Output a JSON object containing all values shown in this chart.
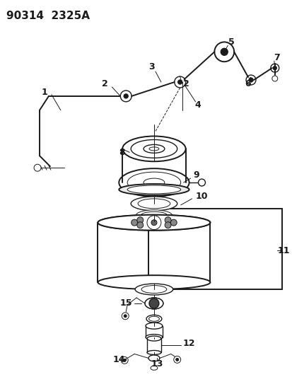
{
  "title": "90314  2325A",
  "bg_color": "#ffffff",
  "line_color": "#1a1a1a",
  "title_fontsize": 11,
  "label_fontsize": 9,
  "fig_width": 4.14,
  "fig_height": 5.33
}
